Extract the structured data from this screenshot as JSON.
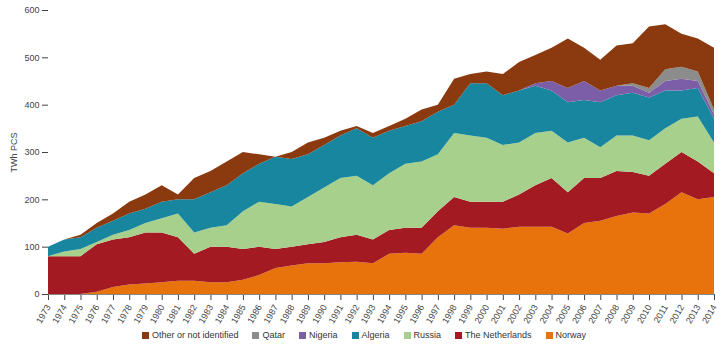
{
  "chart_data": {
    "type": "area",
    "stacked": true,
    "y_label": "TWh PCS",
    "x": [
      1973,
      1974,
      1975,
      1976,
      1977,
      1978,
      1979,
      1980,
      1981,
      1982,
      1983,
      1984,
      1985,
      1986,
      1987,
      1988,
      1989,
      1990,
      1991,
      1992,
      1993,
      1994,
      1995,
      1996,
      1997,
      1998,
      1999,
      2000,
      2001,
      2002,
      2003,
      2004,
      2005,
      2006,
      2007,
      2008,
      2009,
      2010,
      2011,
      2012,
      2013,
      2014
    ],
    "xlim": [
      1973,
      2014
    ],
    "xticks": [
      1973,
      1974,
      1975,
      1976,
      1977,
      1978,
      1979,
      1980,
      1981,
      1982,
      1983,
      1984,
      1985,
      1986,
      1987,
      1988,
      1989,
      1990,
      1991,
      1992,
      1993,
      1994,
      1995,
      1996,
      1997,
      1998,
      1999,
      2000,
      2001,
      2002,
      2003,
      2004,
      2005,
      2006,
      2007,
      2008,
      2009,
      2010,
      2011,
      2012,
      2013,
      2014
    ],
    "ylim": [
      0,
      600
    ],
    "yticks": [
      0,
      100,
      200,
      300,
      400,
      500,
      600
    ],
    "grid": false,
    "legend": "bottom",
    "series": [
      {
        "name": "Norway",
        "color": "#e8720c",
        "values": [
          0,
          0,
          0,
          5,
          15,
          20,
          22,
          25,
          28,
          28,
          25,
          25,
          30,
          40,
          55,
          60,
          65,
          65,
          67,
          68,
          65,
          85,
          87,
          85,
          120,
          145,
          140,
          140,
          138,
          142,
          142,
          142,
          128,
          150,
          155,
          165,
          172,
          170,
          190,
          215,
          200,
          205
        ]
      },
      {
        "name": "The Netherlands",
        "color": "#a31a22",
        "values": [
          80,
          80,
          80,
          100,
          100,
          100,
          108,
          105,
          92,
          57,
          75,
          75,
          65,
          60,
          40,
          40,
          40,
          45,
          53,
          57,
          50,
          50,
          53,
          55,
          55,
          60,
          55,
          55,
          57,
          68,
          88,
          103,
          87,
          95,
          90,
          95,
          86,
          80,
          85,
          85,
          80,
          50
        ]
      },
      {
        "name": "Russia",
        "color": "#a8d08d",
        "values": [
          0,
          10,
          15,
          5,
          10,
          15,
          20,
          30,
          50,
          45,
          40,
          45,
          80,
          95,
          95,
          85,
          100,
          115,
          125,
          125,
          115,
          120,
          135,
          140,
          120,
          135,
          140,
          135,
          120,
          110,
          110,
          100,
          105,
          85,
          65,
          75,
          77,
          75,
          75,
          70,
          95,
          65
        ]
      },
      {
        "name": "Algeria",
        "color": "#17869e",
        "values": [
          20,
          25,
          25,
          30,
          30,
          35,
          30,
          35,
          30,
          70,
          75,
          85,
          80,
          80,
          100,
          100,
          90,
          90,
          90,
          100,
          100,
          90,
          80,
          85,
          90,
          60,
          110,
          115,
          105,
          110,
          100,
          85,
          85,
          80,
          95,
          85,
          90,
          90,
          80,
          60,
          60,
          50
        ]
      },
      {
        "name": "Nigeria",
        "color": "#7b5ea7",
        "values": [
          0,
          0,
          0,
          0,
          0,
          0,
          0,
          0,
          0,
          0,
          0,
          0,
          0,
          0,
          0,
          0,
          0,
          0,
          0,
          0,
          0,
          0,
          0,
          0,
          0,
          0,
          0,
          0,
          0,
          0,
          5,
          20,
          30,
          40,
          25,
          20,
          15,
          10,
          20,
          25,
          15,
          10
        ]
      },
      {
        "name": "Qatar",
        "color": "#8c8c8c",
        "values": [
          0,
          0,
          0,
          0,
          0,
          0,
          0,
          0,
          0,
          0,
          0,
          0,
          0,
          0,
          0,
          0,
          0,
          0,
          0,
          0,
          0,
          0,
          0,
          0,
          0,
          0,
          0,
          0,
          0,
          0,
          0,
          0,
          0,
          0,
          0,
          0,
          5,
          10,
          25,
          25,
          20,
          10
        ]
      },
      {
        "name": "Other or not identified",
        "color": "#8b3a0f",
        "values": [
          0,
          0,
          5,
          10,
          15,
          25,
          30,
          35,
          10,
          45,
          45,
          50,
          45,
          20,
          0,
          15,
          25,
          15,
          10,
          5,
          10,
          10,
          15,
          25,
          15,
          55,
          20,
          25,
          45,
          60,
          60,
          70,
          105,
          70,
          65,
          85,
          85,
          130,
          95,
          70,
          70,
          130
        ]
      }
    ]
  }
}
